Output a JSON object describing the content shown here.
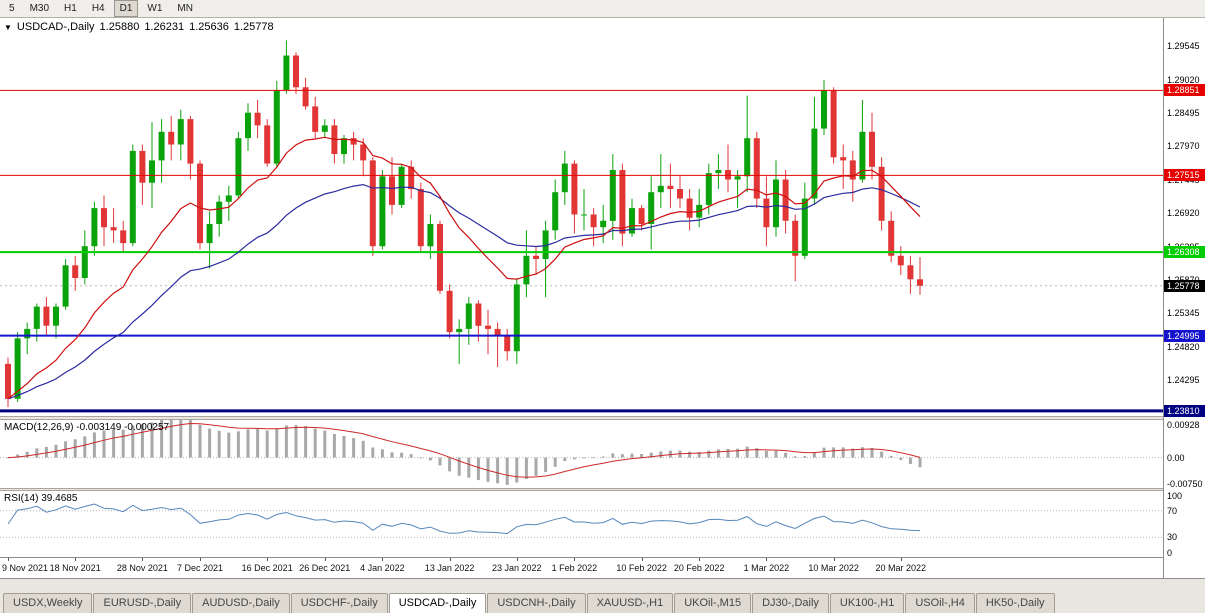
{
  "toolbar": {
    "timeframes": [
      {
        "label": "5",
        "active": false
      },
      {
        "label": "M30",
        "active": false
      },
      {
        "label": "H1",
        "active": false
      },
      {
        "label": "H4",
        "active": false
      },
      {
        "label": "D1",
        "active": true
      },
      {
        "label": "W1",
        "active": false
      },
      {
        "label": "MN",
        "active": false
      }
    ]
  },
  "chart_title": {
    "marker": "▼",
    "symbol": "USDCAD-,Daily",
    "open": "1.25880",
    "high": "1.26231",
    "low": "1.25636",
    "close": "1.25778"
  },
  "chart_data": {
    "type": "candlestick",
    "symbol": "USDCAD",
    "timeframe": "Daily",
    "colors": {
      "bull": "#0ba30b",
      "bear": "#e23636",
      "current_badge": "#000000"
    },
    "price_axis": {
      "min": 1.2373,
      "max": 1.2999,
      "ticks": [
        {
          "v": 1.29545,
          "t": "1.29545"
        },
        {
          "v": 1.2902,
          "t": "1.29020"
        },
        {
          "v": 1.28495,
          "t": "1.28495"
        },
        {
          "v": 1.2797,
          "t": "1.27970"
        },
        {
          "v": 1.27445,
          "t": "1.27445"
        },
        {
          "v": 1.2692,
          "t": "1.26920"
        },
        {
          "v": 1.26395,
          "t": "1.26395"
        },
        {
          "v": 1.2587,
          "t": "1.25870"
        },
        {
          "v": 1.25345,
          "t": "1.25345"
        },
        {
          "v": 1.2482,
          "t": "1.24820"
        },
        {
          "v": 1.24295,
          "t": "1.24295"
        },
        {
          "v": 1.2377,
          "t": "1.23770"
        }
      ]
    },
    "levels": [
      {
        "value": 1.28851,
        "label": "1.28851",
        "color": "#e80000",
        "width": 1
      },
      {
        "value": 1.27515,
        "label": "1.27515",
        "color": "#e80000",
        "width": 1
      },
      {
        "value": 1.26308,
        "label": "1.26308",
        "color": "#00cc00",
        "width": 2
      },
      {
        "value": 1.24995,
        "label": "1.24995",
        "color": "#1414cc",
        "width": 2
      },
      {
        "value": 1.2381,
        "label": "1.23810",
        "color": "#000080",
        "width": 3
      }
    ],
    "current_price": {
      "value": 1.25778,
      "label": "1.25778"
    },
    "moving_averages": [
      {
        "period": 15,
        "color": "#cf0e0e"
      },
      {
        "period": 34,
        "color": "#2b2ba0"
      }
    ],
    "candles": [
      [
        1.2455,
        1.2465,
        1.2387,
        1.24
      ],
      [
        1.24,
        1.2505,
        1.2395,
        1.2495
      ],
      [
        1.2495,
        1.252,
        1.247,
        1.251
      ],
      [
        1.251,
        1.255,
        1.249,
        1.2545
      ],
      [
        1.2545,
        1.256,
        1.25,
        1.2515
      ],
      [
        1.2515,
        1.255,
        1.2495,
        1.2545
      ],
      [
        1.2545,
        1.262,
        1.254,
        1.261
      ],
      [
        1.261,
        1.2625,
        1.257,
        1.259
      ],
      [
        1.259,
        1.2665,
        1.258,
        1.264
      ],
      [
        1.264,
        1.271,
        1.2625,
        1.27
      ],
      [
        1.27,
        1.272,
        1.264,
        1.267
      ],
      [
        1.267,
        1.27,
        1.2645,
        1.2665
      ],
      [
        1.2665,
        1.268,
        1.263,
        1.2645
      ],
      [
        1.2645,
        1.28,
        1.264,
        1.279
      ],
      [
        1.279,
        1.28,
        1.2705,
        1.274
      ],
      [
        1.274,
        1.2835,
        1.27,
        1.2775
      ],
      [
        1.2775,
        1.284,
        1.274,
        1.282
      ],
      [
        1.282,
        1.2845,
        1.2775,
        1.28
      ],
      [
        1.28,
        1.2855,
        1.2775,
        1.284
      ],
      [
        1.284,
        1.2845,
        1.2745,
        1.277
      ],
      [
        1.277,
        1.2775,
        1.2635,
        1.2645
      ],
      [
        1.2645,
        1.2695,
        1.2605,
        1.2675
      ],
      [
        1.2675,
        1.272,
        1.2655,
        1.271
      ],
      [
        1.271,
        1.2735,
        1.268,
        1.272
      ],
      [
        1.272,
        1.282,
        1.2715,
        1.281
      ],
      [
        1.281,
        1.2865,
        1.279,
        1.285
      ],
      [
        1.285,
        1.287,
        1.281,
        1.283
      ],
      [
        1.283,
        1.284,
        1.2765,
        1.277
      ],
      [
        1.277,
        1.29,
        1.2765,
        1.2885
      ],
      [
        1.2885,
        1.2964,
        1.288,
        1.294
      ],
      [
        1.294,
        1.2945,
        1.288,
        1.289
      ],
      [
        1.289,
        1.2905,
        1.2855,
        1.286
      ],
      [
        1.286,
        1.2875,
        1.281,
        1.282
      ],
      [
        1.282,
        1.284,
        1.281,
        1.283
      ],
      [
        1.283,
        1.284,
        1.277,
        1.2785
      ],
      [
        1.2785,
        1.2815,
        1.277,
        1.281
      ],
      [
        1.281,
        1.282,
        1.2775,
        1.28
      ],
      [
        1.28,
        1.281,
        1.275,
        1.2775
      ],
      [
        1.2775,
        1.278,
        1.2625,
        1.264
      ],
      [
        1.264,
        1.276,
        1.2635,
        1.275
      ],
      [
        1.275,
        1.278,
        1.269,
        1.2705
      ],
      [
        1.2705,
        1.277,
        1.27,
        1.2765
      ],
      [
        1.2765,
        1.2775,
        1.2715,
        1.273
      ],
      [
        1.273,
        1.274,
        1.263,
        1.264
      ],
      [
        1.264,
        1.269,
        1.262,
        1.2675
      ],
      [
        1.2675,
        1.268,
        1.2565,
        1.257
      ],
      [
        1.257,
        1.258,
        1.2495,
        1.2505
      ],
      [
        1.2505,
        1.2525,
        1.2455,
        1.251
      ],
      [
        1.251,
        1.256,
        1.2485,
        1.255
      ],
      [
        1.255,
        1.2555,
        1.249,
        1.2515
      ],
      [
        1.2515,
        1.254,
        1.247,
        1.251
      ],
      [
        1.251,
        1.252,
        1.245,
        1.25
      ],
      [
        1.25,
        1.251,
        1.246,
        1.2475
      ],
      [
        1.2475,
        1.259,
        1.2455,
        1.258
      ],
      [
        1.258,
        1.2665,
        1.256,
        1.2625
      ],
      [
        1.2625,
        1.264,
        1.2595,
        1.262
      ],
      [
        1.262,
        1.268,
        1.256,
        1.2665
      ],
      [
        1.2665,
        1.2745,
        1.265,
        1.2725
      ],
      [
        1.2725,
        1.279,
        1.2705,
        1.277
      ],
      [
        1.277,
        1.2775,
        1.266,
        1.269
      ],
      [
        1.269,
        1.273,
        1.2665,
        1.269
      ],
      [
        1.269,
        1.27,
        1.264,
        1.267
      ],
      [
        1.267,
        1.2705,
        1.2645,
        1.268
      ],
      [
        1.268,
        1.2785,
        1.265,
        1.276
      ],
      [
        1.276,
        1.277,
        1.264,
        1.266
      ],
      [
        1.266,
        1.2715,
        1.2655,
        1.27
      ],
      [
        1.27,
        1.2705,
        1.2665,
        1.2675
      ],
      [
        1.2675,
        1.275,
        1.2635,
        1.2725
      ],
      [
        1.2725,
        1.2785,
        1.27,
        1.2735
      ],
      [
        1.2735,
        1.277,
        1.27,
        1.273
      ],
      [
        1.273,
        1.275,
        1.27,
        1.2715
      ],
      [
        1.2715,
        1.273,
        1.2665,
        1.2685
      ],
      [
        1.2685,
        1.273,
        1.267,
        1.2705
      ],
      [
        1.2705,
        1.277,
        1.269,
        1.2755
      ],
      [
        1.2755,
        1.2785,
        1.273,
        1.276
      ],
      [
        1.276,
        1.28,
        1.2725,
        1.2745
      ],
      [
        1.2745,
        1.276,
        1.27,
        1.275
      ],
      [
        1.275,
        1.2877,
        1.2725,
        1.281
      ],
      [
        1.281,
        1.282,
        1.27,
        1.2715
      ],
      [
        1.2715,
        1.275,
        1.264,
        1.267
      ],
      [
        1.267,
        1.2775,
        1.2655,
        1.2745
      ],
      [
        1.2745,
        1.276,
        1.266,
        1.268
      ],
      [
        1.268,
        1.269,
        1.2585,
        1.2625
      ],
      [
        1.2625,
        1.274,
        1.262,
        1.2715
      ],
      [
        1.2715,
        1.2875,
        1.2705,
        1.2825
      ],
      [
        1.2825,
        1.2901,
        1.2815,
        1.2885
      ],
      [
        1.2885,
        1.289,
        1.277,
        1.278
      ],
      [
        1.278,
        1.28,
        1.273,
        1.2775
      ],
      [
        1.2775,
        1.279,
        1.271,
        1.2745
      ],
      [
        1.2745,
        1.287,
        1.274,
        1.282
      ],
      [
        1.282,
        1.285,
        1.2745,
        1.2765
      ],
      [
        1.2765,
        1.278,
        1.2665,
        1.268
      ],
      [
        1.268,
        1.2695,
        1.2615,
        1.2625
      ],
      [
        1.2625,
        1.264,
        1.2595,
        1.261
      ],
      [
        1.261,
        1.2625,
        1.2565,
        1.2588
      ],
      [
        1.2588,
        1.26231,
        1.25636,
        1.25778
      ]
    ],
    "date_labels": [
      {
        "i": 0,
        "label": "9 Nov 2021"
      },
      {
        "i": 7,
        "label": "18 Nov 2021"
      },
      {
        "i": 14,
        "label": "28 Nov 2021"
      },
      {
        "i": 20,
        "label": "7 Dec 2021"
      },
      {
        "i": 27,
        "label": "16 Dec 2021"
      },
      {
        "i": 33,
        "label": "26 Dec 2021"
      },
      {
        "i": 39,
        "label": "4 Jan 2022"
      },
      {
        "i": 46,
        "label": "13 Jan 2022"
      },
      {
        "i": 53,
        "label": "23 Jan 2022"
      },
      {
        "i": 59,
        "label": "1 Feb 2022"
      },
      {
        "i": 66,
        "label": "10 Feb 2022"
      },
      {
        "i": 72,
        "label": "20 Feb 2022"
      },
      {
        "i": 79,
        "label": "1 Mar 2022"
      },
      {
        "i": 86,
        "label": "10 Mar 2022"
      },
      {
        "i": 93,
        "label": "20 Mar 2022"
      }
    ],
    "macd": {
      "display": "MACD(12,26,9) -0.003149 -0.000257",
      "fast": 12,
      "slow": 26,
      "signal": 9,
      "value": "-0.003149",
      "signal_value": "-0.000257",
      "range": [
        -0.0075,
        0.00928
      ],
      "axis_labels": [
        {
          "v": 0.00928,
          "label": "0.00928"
        },
        {
          "v": 0,
          "label": "0.00"
        },
        {
          "v": -0.0075,
          "label": "-0.00750"
        }
      ],
      "histogram_color": "#a8a8a8",
      "signal_color": "#cc2a2a"
    },
    "rsi": {
      "display": "RSI(14) 39.4685",
      "period": 14,
      "value": "39.4685",
      "range": [
        0,
        100
      ],
      "guides": [
        70,
        30
      ],
      "axis_labels": [
        {
          "v": 100,
          "label": "100"
        },
        {
          "v": 70,
          "label": "70"
        },
        {
          "v": 30,
          "label": "30"
        },
        {
          "v": 0,
          "label": "0"
        }
      ],
      "color": "#5588bb"
    }
  },
  "tabbar": {
    "tabs": [
      {
        "label": "USDX,Weekly",
        "active": false
      },
      {
        "label": "EURUSD-,Daily",
        "active": false
      },
      {
        "label": "AUDUSD-,Daily",
        "active": false
      },
      {
        "label": "USDCHF-,Daily",
        "active": false
      },
      {
        "label": "USDCAD-,Daily",
        "active": true
      },
      {
        "label": "USDCNH-,Daily",
        "active": false
      },
      {
        "label": "XAUUSD-,H1",
        "active": false
      },
      {
        "label": "UKOil-,M15",
        "active": false
      },
      {
        "label": "DJ30-,Daily",
        "active": false
      },
      {
        "label": "UK100-,H1",
        "active": false
      },
      {
        "label": "USOil-,H4",
        "active": false
      },
      {
        "label": "HK50-,Daily",
        "active": false
      }
    ]
  }
}
